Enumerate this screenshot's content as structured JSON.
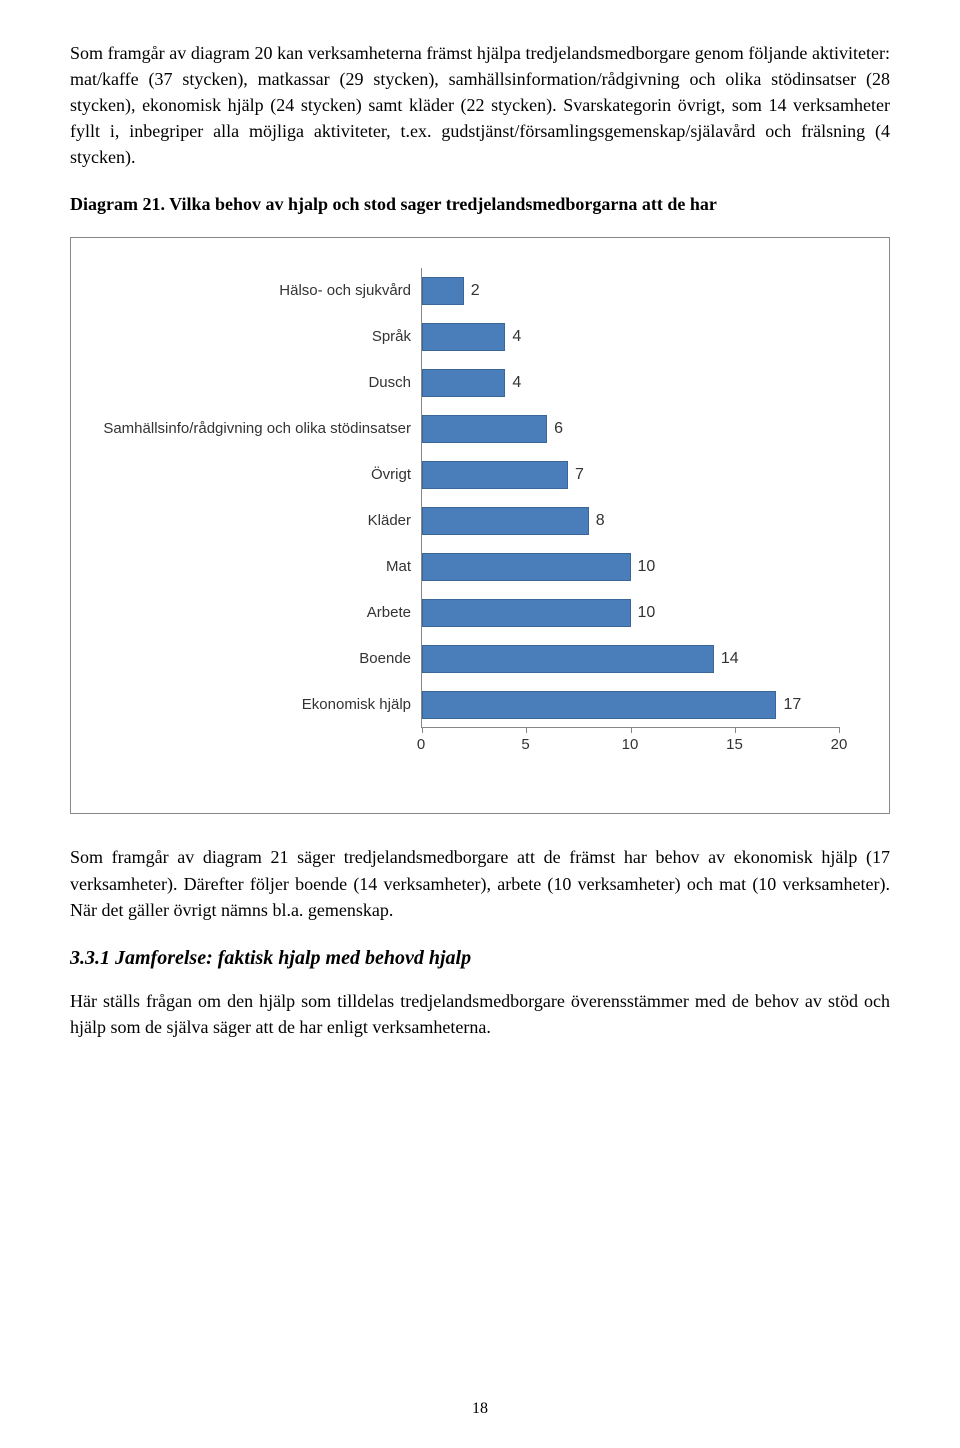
{
  "para1": "Som framgår av diagram 20 kan verksamheterna främst hjälpa tredjelandsmedborgare genom följande aktiviteter: mat/kaffe (37 stycken), matkassar (29 stycken), samhällsinformation/rådgivning och olika stödinsatser (28 stycken), ekonomisk hjälp (24 stycken) samt kläder (22 stycken). Svarskategorin övrigt, som 14 verksamheter fyllt i, inbegriper alla möjliga aktiviteter, t.ex. gudstjänst/församlingsgemenskap/själavård och frälsning (4 stycken).",
  "diagram_title": "Diagram 21. Vilka behov av hjalp och stod sager tredjelandsmedborgarna att de har",
  "chart": {
    "type": "bar-horizontal",
    "xmax": 20,
    "xtick_step": 5,
    "bar_color": "#4a7ebb",
    "bar_border": "#3b6698",
    "plot_border": "#888888",
    "tick_color": "#888888",
    "label_color": "#333333",
    "label_fontsize": 15,
    "value_fontsize": 16,
    "categories": [
      {
        "label": "Hälso- och sjukvård",
        "value": 2
      },
      {
        "label": "Språk",
        "value": 4
      },
      {
        "label": "Dusch",
        "value": 4
      },
      {
        "label": "Samhällsinfo/rådgivning och olika stödinsatser",
        "value": 6
      },
      {
        "label": "Övrigt",
        "value": 7
      },
      {
        "label": "Kläder",
        "value": 8
      },
      {
        "label": "Mat",
        "value": 10
      },
      {
        "label": "Arbete",
        "value": 10
      },
      {
        "label": "Boende",
        "value": 14
      },
      {
        "label": "Ekonomisk hjälp",
        "value": 17
      }
    ]
  },
  "para2": "Som framgår av diagram 21 säger tredjelandsmedborgare att de främst har behov av ekonomisk hjälp (17 verksamheter). Därefter följer boende (14 verksamheter), arbete (10 verksamheter) och mat (10 verksamheter). När det gäller övrigt nämns bl.a. gemenskap.",
  "section_heading": "3.3.1 Jamforelse: faktisk hjalp med behovd hjalp",
  "para3": "Här ställs frågan om den hjälp som tilldelas tredjelandsmedborgare överensstämmer med de behov av stöd och hjälp som de själva säger att de har enligt verksamheterna.",
  "page_number": "18"
}
